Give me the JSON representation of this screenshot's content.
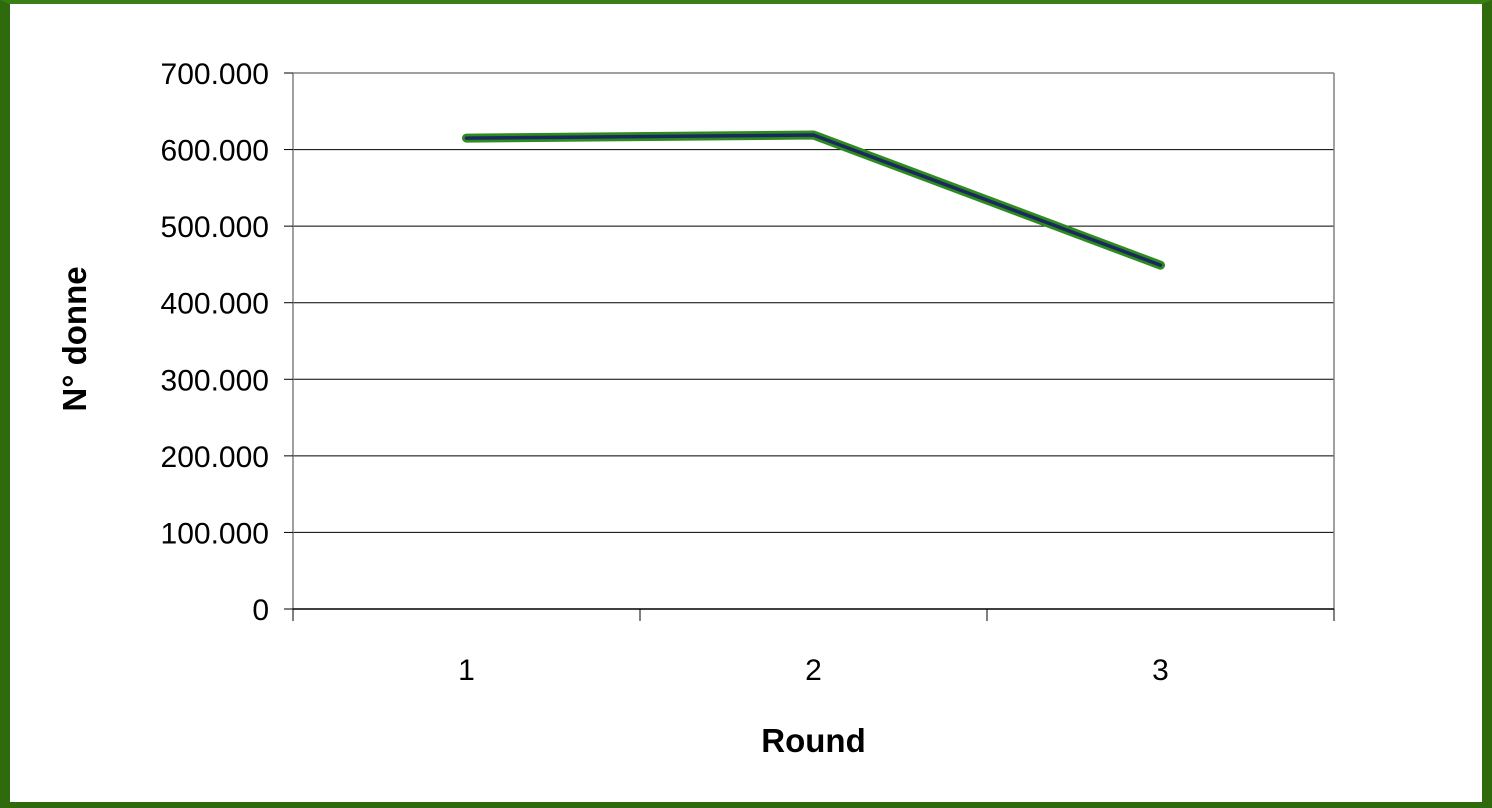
{
  "chart_data": {
    "type": "line",
    "title": "",
    "xlabel": "Round",
    "ylabel": "N° donne",
    "categories": [
      "1",
      "2",
      "3"
    ],
    "series": [
      {
        "values": [
          615000,
          619000,
          449000
        ]
      }
    ],
    "ylim": [
      0,
      700000
    ],
    "yticks": [
      0,
      100000,
      200000,
      300000,
      400000,
      500000,
      600000,
      700000
    ],
    "ytick_labels": [
      "0",
      "100.000",
      "200.000",
      "300.000",
      "400.000",
      "500.000",
      "600.000",
      "700.000"
    ],
    "grid": "horizontal",
    "legend": "none",
    "colors": {
      "frame": "#2f6a0c",
      "line_outer": "#2e8b1e",
      "line_inner": "#1a2a5e",
      "gridline": "#000000",
      "background": "#ffffff"
    }
  }
}
